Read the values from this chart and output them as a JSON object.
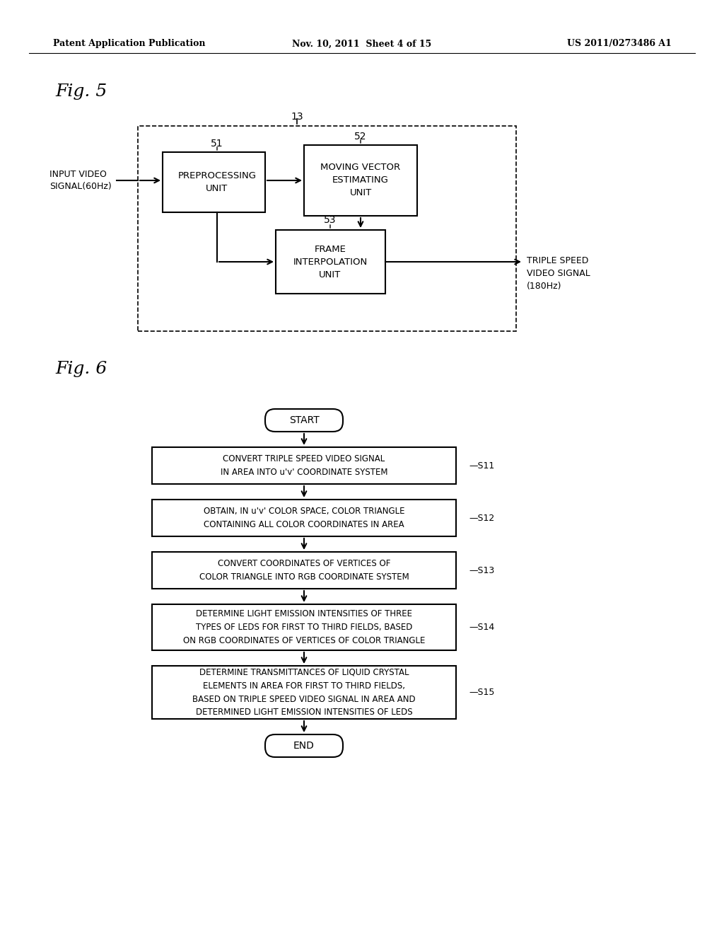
{
  "bg_color": "#ffffff",
  "header_left": "Patent Application Publication",
  "header_mid": "Nov. 10, 2011  Sheet 4 of 15",
  "header_right": "US 2011/0273486 A1",
  "fig5_label": "Fig. 5",
  "fig6_label": "Fig. 6",
  "fig5": {
    "label13": "13",
    "label51": "51",
    "label52": "52",
    "label53": "53",
    "box_preprocess": "PREPROCESSING\nUNIT",
    "box_moving": "MOVING VECTOR\nESTIMATING\nUNIT",
    "box_frame": "FRAME\nINTERPOLATION\nUNIT",
    "input_label": "INPUT VIDEO\nSIGNAL(60Hz)",
    "output_label": "TRIPLE SPEED\nVIDEO SIGNAL\n(180Hz)"
  },
  "fig6": {
    "start_label": "START",
    "end_label": "END",
    "steps": [
      "CONVERT TRIPLE SPEED VIDEO SIGNAL\nIN AREA INTO u'v' COORDINATE SYSTEM",
      "OBTAIN, IN u'v' COLOR SPACE, COLOR TRIANGLE\nCONTAINING ALL COLOR COORDINATES IN AREA",
      "CONVERT COORDINATES OF VERTICES OF\nCOLOR TRIANGLE INTO RGB COORDINATE SYSTEM",
      "DETERMINE LIGHT EMISSION INTENSITIES OF THREE\nTYPES OF LEDS FOR FIRST TO THIRD FIELDS, BASED\nON RGB COORDINATES OF VERTICES OF COLOR TRIANGLE",
      "DETERMINE TRANSMITTANCES OF LIQUID CRYSTAL\nELEMENTS IN AREA FOR FIRST TO THIRD FIELDS,\nBASED ON TRIPLE SPEED VIDEO SIGNAL IN AREA AND\nDETERMINED LIGHT EMISSION INTENSITIES OF LEDS"
    ],
    "step_labels": [
      "S11",
      "S12",
      "S13",
      "S14",
      "S15"
    ]
  }
}
